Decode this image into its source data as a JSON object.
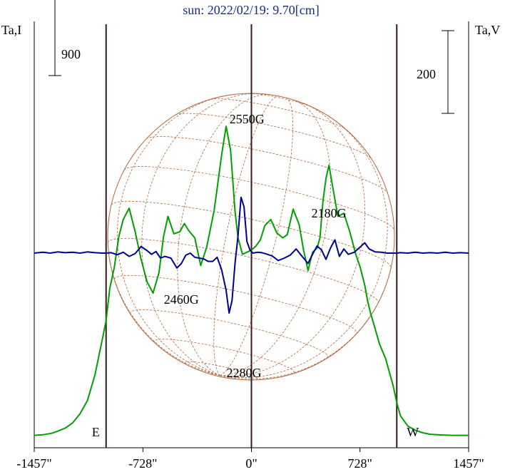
{
  "chart_data": {
    "type": "line",
    "title": "sun: 2022/02/19: 9.70[cm]",
    "left_axis_label": "Ta,I",
    "right_axis_label": "Ta,V",
    "xlim": [
      -1457,
      1457
    ],
    "x_ticks": [
      {
        "value": -1457,
        "label": "-1457\""
      },
      {
        "value": -728,
        "label": "-728\""
      },
      {
        "value": 0,
        "label": "0\""
      },
      {
        "value": 728,
        "label": "728\""
      },
      {
        "value": 1457,
        "label": "1457\""
      }
    ],
    "limb_markers": [
      {
        "x": -975,
        "label": "E"
      },
      {
        "x": 975,
        "label": "W"
      }
    ],
    "scale_bars": [
      {
        "axis": "left",
        "value": 900,
        "label": "900"
      },
      {
        "axis": "right",
        "value": 200,
        "label": "200"
      }
    ],
    "annotations": [
      {
        "text": "2550G",
        "x": -30,
        "y_band": "top"
      },
      {
        "text": "2180G",
        "x": 520,
        "y_band": "upper"
      },
      {
        "text": "2460G",
        "x": -470,
        "y_band": "lower"
      },
      {
        "text": "2280G",
        "x": -50,
        "y_band": "bottom"
      }
    ],
    "series": [
      {
        "axis": "left",
        "color": "#00a000",
        "x": [
          -1457,
          -1400,
          -1340,
          -1300,
          -1250,
          -1200,
          -1150,
          -1100,
          -1050,
          -1000,
          -975,
          -950,
          -920,
          -890,
          -860,
          -820,
          -780,
          -740,
          -700,
          -660,
          -620,
          -590,
          -560,
          -520,
          -480,
          -450,
          -420,
          -380,
          -340,
          -300,
          -250,
          -200,
          -170,
          -140,
          -110,
          -90,
          -60,
          -30,
          0,
          30,
          60,
          90,
          130,
          170,
          210,
          240,
          280,
          320,
          350,
          380,
          410,
          440,
          460,
          480,
          500,
          520,
          550,
          580,
          620,
          660,
          700,
          730,
          760,
          780,
          800,
          830,
          860,
          900,
          950,
          975,
          1000,
          1050,
          1100,
          1150,
          1200,
          1250,
          1300,
          1350,
          1400,
          1457
        ],
        "y": [
          10,
          15,
          30,
          50,
          80,
          130,
          220,
          350,
          600,
          950,
          1130,
          1450,
          1650,
          1950,
          2120,
          2230,
          2000,
          1730,
          1510,
          1400,
          1600,
          1950,
          2150,
          1980,
          2000,
          2080,
          2010,
          1940,
          1670,
          1850,
          2210,
          2750,
          3030,
          2800,
          2200,
          1940,
          1780,
          1800,
          1820,
          1860,
          1920,
          2060,
          2120,
          1990,
          1940,
          1970,
          2220,
          2070,
          1820,
          1620,
          1800,
          1840,
          1940,
          2300,
          2520,
          2650,
          2400,
          2150,
          2180,
          2000,
          1780,
          1650,
          1480,
          1320,
          1200,
          1050,
          900,
          760,
          500,
          330,
          200,
          100,
          60,
          35,
          20,
          15,
          12,
          10,
          10,
          10
        ]
      },
      {
        "axis": "right",
        "color": "#000090",
        "x": [
          -1457,
          -1400,
          -1350,
          -1300,
          -1250,
          -1200,
          -1150,
          -1100,
          -1050,
          -1000,
          -975,
          -940,
          -900,
          -860,
          -820,
          -780,
          -740,
          -700,
          -670,
          -640,
          -610,
          -580,
          -540,
          -500,
          -470,
          -440,
          -410,
          -380,
          -350,
          -320,
          -290,
          -260,
          -230,
          -200,
          -170,
          -150,
          -130,
          -110,
          -90,
          -70,
          -50,
          -30,
          -10,
          10,
          40,
          70,
          100,
          140,
          180,
          220,
          260,
          300,
          340,
          380,
          410,
          440,
          470,
          500,
          530,
          560,
          590,
          620,
          650,
          690,
          730,
          760,
          790,
          830,
          870,
          910,
          950,
          975,
          1000,
          1050,
          1100,
          1150,
          1200,
          1250,
          1300,
          1350,
          1400,
          1457
        ],
        "y": [
          0,
          2,
          0,
          3,
          1,
          2,
          0,
          3,
          1,
          0,
          0,
          1,
          -4,
          2,
          -8,
          -1,
          16,
          6,
          -3,
          4,
          -12,
          -8,
          -12,
          -36,
          -25,
          -5,
          0,
          -10,
          -12,
          -14,
          -20,
          -20,
          -10,
          -40,
          -90,
          -145,
          -115,
          -25,
          42,
          135,
          112,
          28,
          8,
          0,
          2,
          1,
          -2,
          -7,
          -18,
          -12,
          -5,
          10,
          -8,
          -25,
          -3,
          17,
          8,
          -15,
          12,
          32,
          -8,
          10,
          -3,
          2,
          15,
          25,
          10,
          3,
          2,
          0,
          0,
          0,
          1,
          0,
          2,
          0,
          1,
          0,
          2,
          0,
          1,
          0
        ]
      }
    ]
  }
}
